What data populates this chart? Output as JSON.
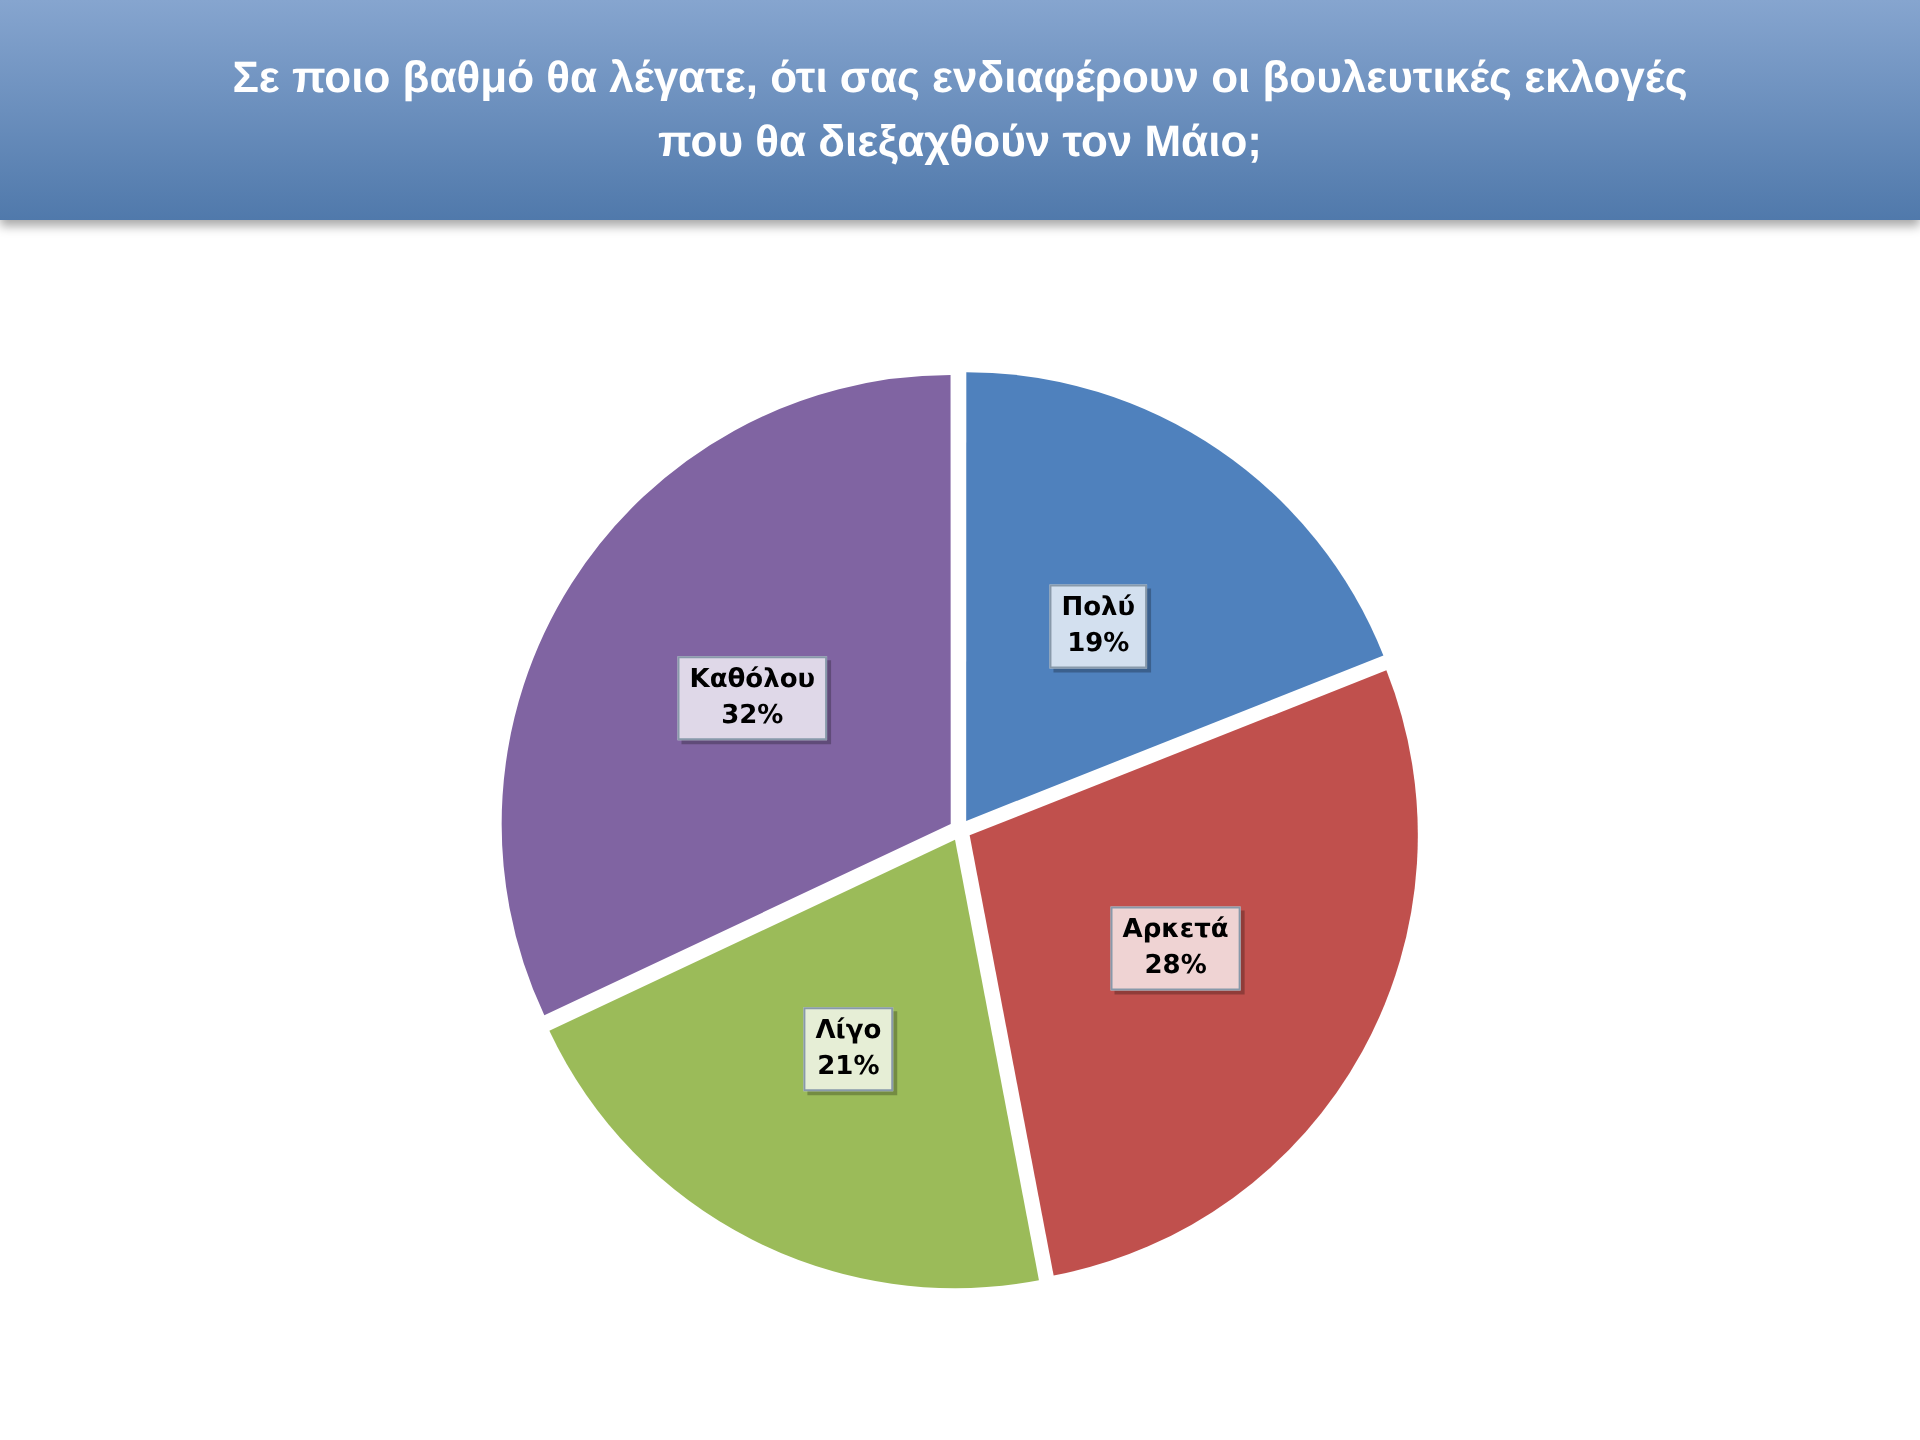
{
  "chart_data": {
    "type": "pie",
    "title": "Σε ποιο βαθμό θα λέγατε, ότι σας ενδιαφέρουν οι βουλευτικές εκλογές που θα διεξαχθούν τον Μάιο;",
    "categories": [
      "Πολύ",
      "Αρκετά",
      "Λίγο",
      "Καθόλου"
    ],
    "values": [
      19,
      28,
      21,
      32
    ],
    "colors": [
      "#4f81bd",
      "#c0504d",
      "#9bbb59",
      "#8064a2"
    ],
    "value_labels": [
      "19%",
      "28%",
      "21%",
      "32%"
    ]
  }
}
